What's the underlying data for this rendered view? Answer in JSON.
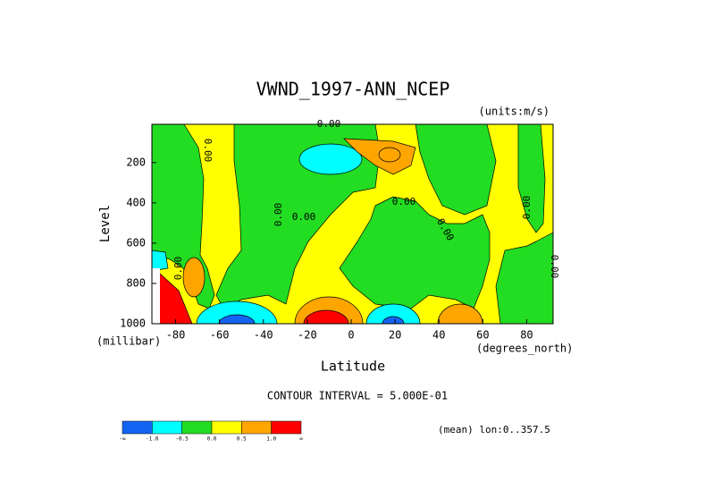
{
  "chart_data": {
    "type": "contour",
    "title": "VWND_1997-ANN_NCEP",
    "subtitle": "(units:m/s)",
    "x_label": "Latitude",
    "x_unit": "(degrees_north)",
    "y_label": "Level",
    "y_unit": "(millibar)",
    "xlim": [
      -90,
      90
    ],
    "xticks": [
      -80,
      -60,
      -40,
      -20,
      0,
      20,
      40,
      60,
      80
    ],
    "ylim": [
      1000,
      10
    ],
    "yticks": [
      200,
      400,
      600,
      800,
      1000
    ],
    "contour_label": "0.00",
    "contour_interval": "CONTOUR INTERVAL = 5.000E-01",
    "footnote": "(mean) lon:0..357.5",
    "colorbar": {
      "colors": [
        "#1464f4",
        "#00ffff",
        "#22dd22",
        "#ffff00",
        "#ffa500",
        "#ff0000"
      ],
      "labels": [
        "-∞",
        "-1.0",
        "-0.5",
        "0.0",
        "0.5",
        "1.0",
        "∞"
      ]
    }
  }
}
